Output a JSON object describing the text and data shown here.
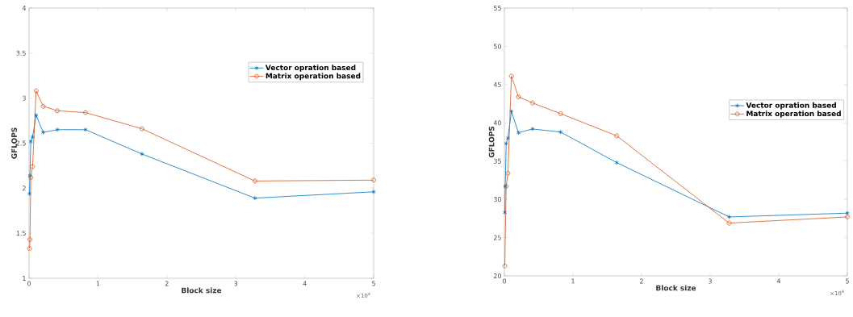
{
  "chart_data": [
    {
      "type": "line",
      "xlabel": "Block size",
      "ylabel": "GFLOPS",
      "xlim": [
        0,
        5
      ],
      "ylim": [
        1,
        4
      ],
      "xticks": [
        0,
        1,
        2,
        3,
        4,
        5
      ],
      "yticks": [
        1,
        1.5,
        2,
        2.5,
        3,
        3.5,
        4
      ],
      "legend": "top right",
      "grid": false,
      "annotations": [
        "×10$^{4}$"
      ],
      "series": [
        {
          "name": "Vector opration based",
          "color": "#0072bd",
          "marker": "cross",
          "x": [
            0.0064,
            0.0128,
            0.0256,
            0.0512,
            0.1024,
            0.2048,
            0.4096,
            0.8192,
            1.6384,
            3.2768,
            5
          ],
          "values": [
            1.94,
            2.14,
            2.52,
            2.57,
            2.81,
            2.62,
            2.65,
            2.65,
            2.38,
            1.89,
            1.96
          ]
        },
        {
          "name": "Matrix operation based",
          "color": "#d95319",
          "marker": "circle",
          "x": [
            0.0064,
            0.0128,
            0.0256,
            0.0512,
            0.1024,
            0.2048,
            0.4096,
            0.8192,
            1.6384,
            3.2768,
            5
          ],
          "values": [
            1.33,
            1.43,
            2.12,
            2.24,
            3.08,
            2.91,
            2.86,
            2.84,
            2.66,
            2.08,
            2.09
          ]
        }
      ]
    },
    {
      "type": "line",
      "xlabel": "Block size",
      "ylabel": "GFLOPS",
      "xlim": [
        0,
        5
      ],
      "ylim": [
        20,
        55
      ],
      "xticks": [
        0,
        1,
        2,
        3,
        4,
        5
      ],
      "yticks": [
        20,
        25,
        30,
        35,
        40,
        45,
        50,
        55
      ],
      "legend": "right",
      "grid": false,
      "annotations": [
        "×10$^{4}$"
      ],
      "series": [
        {
          "name": "Vector opration based",
          "color": "#0072bd",
          "marker": "cross",
          "x": [
            0.0064,
            0.0128,
            0.0256,
            0.0512,
            0.1024,
            0.2048,
            0.4096,
            0.8192,
            1.6384,
            3.2768,
            5
          ],
          "values": [
            28.3,
            31.7,
            37.3,
            38.0,
            41.5,
            38.7,
            39.2,
            38.8,
            34.8,
            27.7,
            28.2
          ]
        },
        {
          "name": "Matrix operation based",
          "color": "#d95319",
          "marker": "circle",
          "x": [
            0.0064,
            0.0256,
            0.0512,
            0.1024,
            0.2048,
            0.4096,
            0.8192,
            1.6384,
            3.2768,
            5
          ],
          "values": [
            21.3,
            31.7,
            33.4,
            46.1,
            43.4,
            42.6,
            41.2,
            38.3,
            26.9,
            27.7
          ]
        }
      ]
    }
  ]
}
